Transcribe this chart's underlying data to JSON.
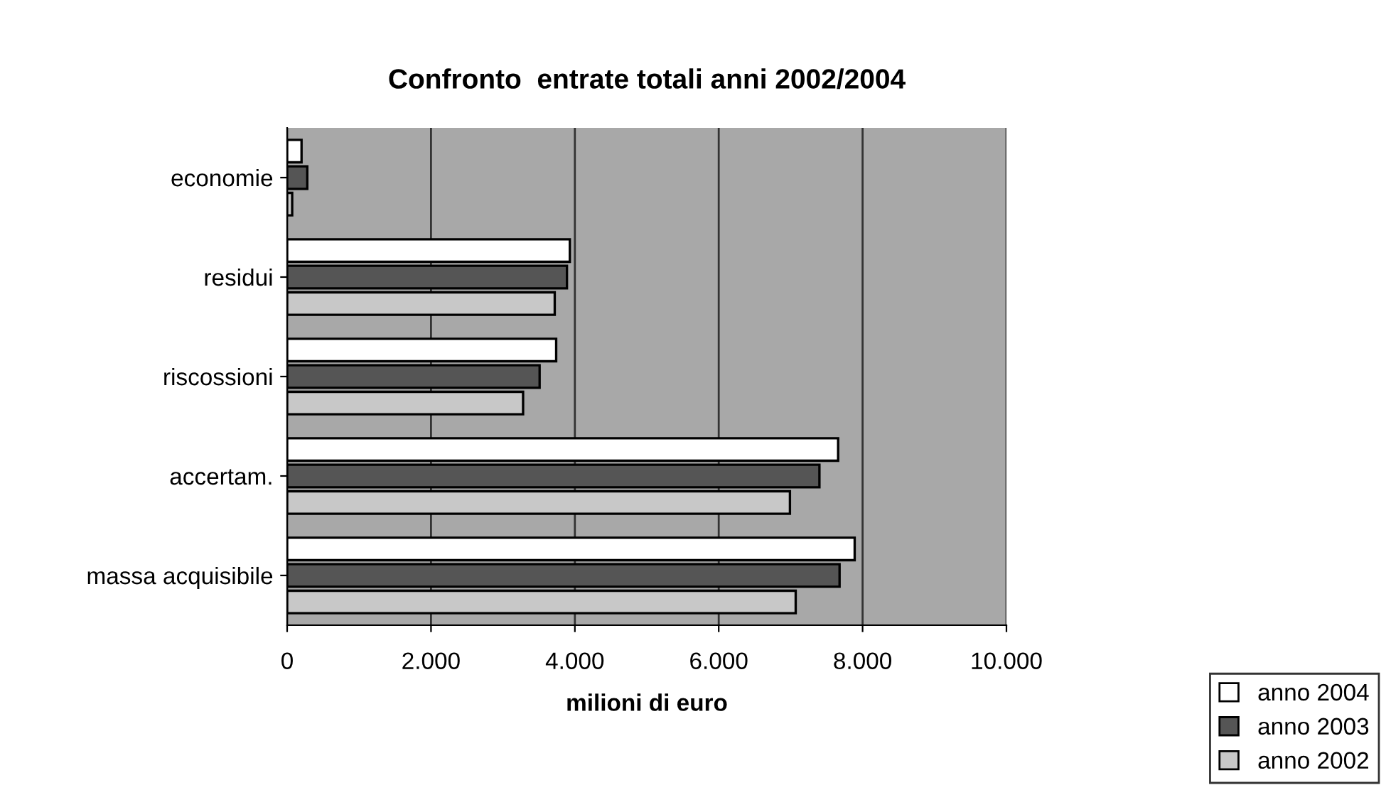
{
  "chart_data": {
    "type": "bar",
    "orientation": "horizontal",
    "title": "Confronto  entrate totali anni 2002/2004",
    "xlabel": "milioni di euro",
    "categories": [
      "economie",
      "residui",
      "riscossioni",
      "accertam.",
      "massa acquisibile"
    ],
    "series": [
      {
        "name": "anno 2004",
        "color": "#ffffff",
        "values": [
          200,
          3930,
          3740,
          7660,
          7890
        ]
      },
      {
        "name": "anno 2003",
        "color": "#555555",
        "values": [
          280,
          3890,
          3510,
          7400,
          7680
        ]
      },
      {
        "name": "anno 2002",
        "color": "#c8c8c8",
        "values": [
          70,
          3720,
          3280,
          6990,
          7070
        ]
      }
    ],
    "xlim": [
      0,
      10000
    ],
    "xticks": [
      0,
      {
        "value": 2000,
        "label": "2.000"
      },
      {
        "value": 4000,
        "label": "4.000"
      },
      {
        "value": 6000,
        "label": "6.000"
      },
      {
        "value": 8000,
        "label": "8.000"
      },
      {
        "value": 10000,
        "label": "10.000"
      }
    ],
    "grid": "x",
    "legend": "bottom right"
  }
}
